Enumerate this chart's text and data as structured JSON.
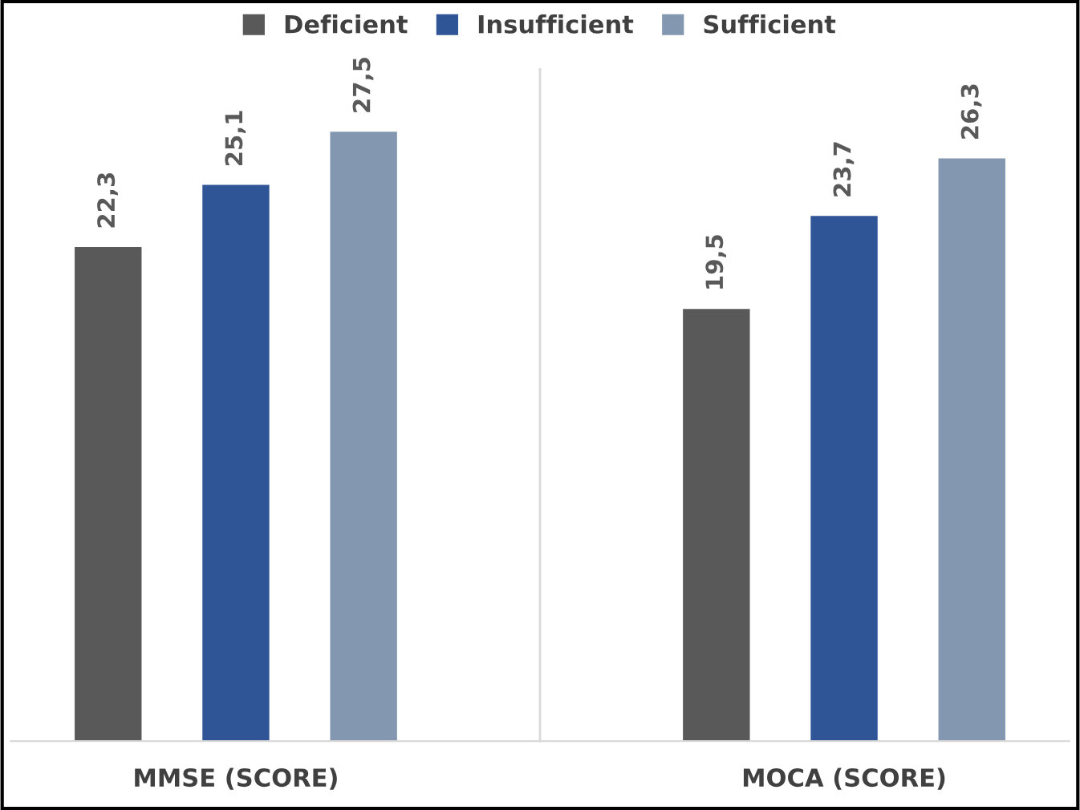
{
  "chart_data": {
    "type": "bar",
    "categories": [
      "MMSE (SCORE)",
      "MOCA (SCORE)"
    ],
    "series": [
      {
        "name": "Deficient",
        "color": "#595959",
        "values": [
          22.3,
          19.5
        ],
        "value_labels": [
          "22,3",
          "19,5"
        ]
      },
      {
        "name": "Insufficient",
        "color": "#2f5597",
        "values": [
          25.1,
          23.7
        ],
        "value_labels": [
          "25,1",
          "23,7"
        ]
      },
      {
        "name": "Sufficient",
        "color": "#8497b0",
        "values": [
          27.5,
          26.3
        ],
        "value_labels": [
          "27,5",
          "26,3"
        ]
      }
    ],
    "legend": "top",
    "grid": false,
    "tick_labels": "x"
  }
}
